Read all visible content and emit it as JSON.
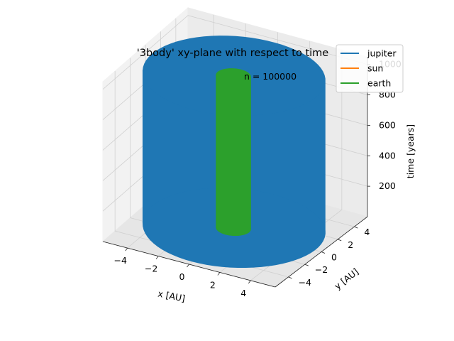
{
  "chart_data": {
    "type": "line",
    "projection": "3d",
    "title": "'3body' xy-plane with respect to time",
    "annotation": "n = 100000",
    "xlabel": "x [AU]",
    "ylabel": "y [AU]",
    "zlabel": "time [years]",
    "xlim": [
      -5.6,
      5.6
    ],
    "ylim": [
      -5.6,
      5.6
    ],
    "zlim": [
      0,
      1050
    ],
    "x_ticks": [
      -4,
      -2,
      0,
      2,
      4
    ],
    "y_ticks": [
      -4,
      -2,
      0,
      2,
      4
    ],
    "z_ticks": [
      200,
      400,
      600,
      800,
      1000
    ],
    "x_tick_labels": [
      "−4",
      "−2",
      "0",
      "2",
      "4"
    ],
    "y_tick_labels": [
      "−4",
      "−2",
      "0",
      "2",
      "4"
    ],
    "z_tick_labels": [
      "200",
      "400",
      "600",
      "800",
      "1000"
    ],
    "grid": true,
    "legend_position": "top-right",
    "series": [
      {
        "name": "jupiter",
        "color": "#1f77b4",
        "orbit_radius": 5.2,
        "time_range": [
          0,
          1000
        ]
      },
      {
        "name": "sun",
        "color": "#ff7f0e",
        "orbit_radius": 0.0,
        "time_range": [
          0,
          1000
        ]
      },
      {
        "name": "earth",
        "color": "#2ca02c",
        "orbit_radius": 1.0,
        "time_range": [
          0,
          1000
        ]
      }
    ]
  }
}
